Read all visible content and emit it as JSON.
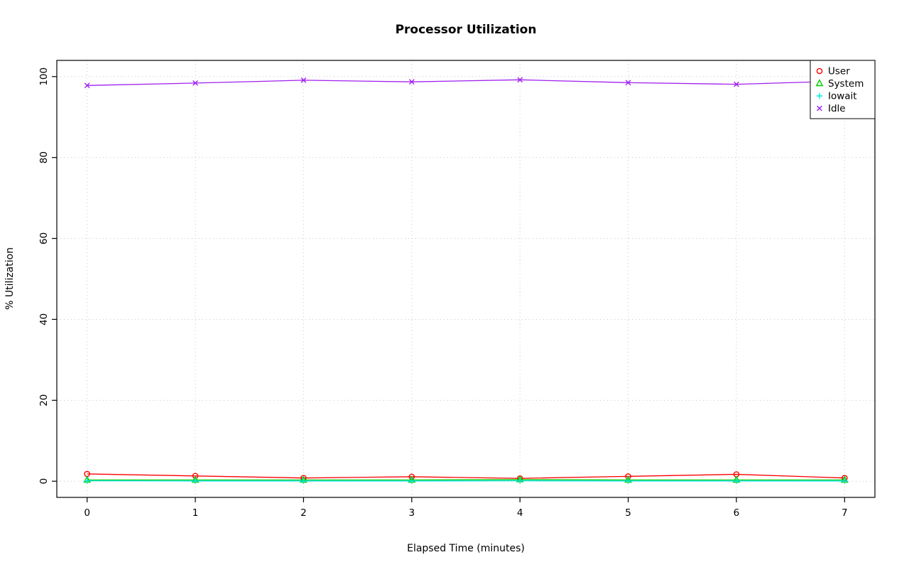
{
  "chart_data": {
    "type": "line",
    "title": "Processor Utilization",
    "xlabel": "Elapsed Time (minutes)",
    "ylabel": "% Utilization",
    "x": [
      0,
      1,
      2,
      3,
      4,
      5,
      6,
      7
    ],
    "xlim": [
      0,
      7
    ],
    "ylim": [
      0,
      100
    ],
    "xticks": [
      0,
      1,
      2,
      3,
      4,
      5,
      6,
      7
    ],
    "yticks": [
      0,
      20,
      40,
      60,
      80,
      100
    ],
    "grid": true,
    "grid_style": "dotted",
    "grid_color": "#c6c6c6",
    "box_color": "#000000",
    "legend_position": "top-right",
    "series": [
      {
        "name": "User",
        "color": "#ff0000",
        "marker": "circle",
        "values": [
          1.8,
          1.3,
          0.8,
          1.1,
          0.7,
          1.2,
          1.7,
          0.8
        ]
      },
      {
        "name": "System",
        "color": "#00cd00",
        "marker": "triangle",
        "values": [
          0.3,
          0.3,
          0.3,
          0.3,
          0.4,
          0.3,
          0.3,
          0.3
        ]
      },
      {
        "name": "Iowait",
        "color": "#00e5e5",
        "marker": "plus",
        "values": [
          0.1,
          0.05,
          0.05,
          0.05,
          0.1,
          0.05,
          0.05,
          0.05
        ]
      },
      {
        "name": "Idle",
        "color": "#a020f0",
        "marker": "x",
        "values": [
          97.8,
          98.4,
          99.1,
          98.7,
          99.2,
          98.5,
          98.1,
          98.9
        ]
      }
    ]
  }
}
